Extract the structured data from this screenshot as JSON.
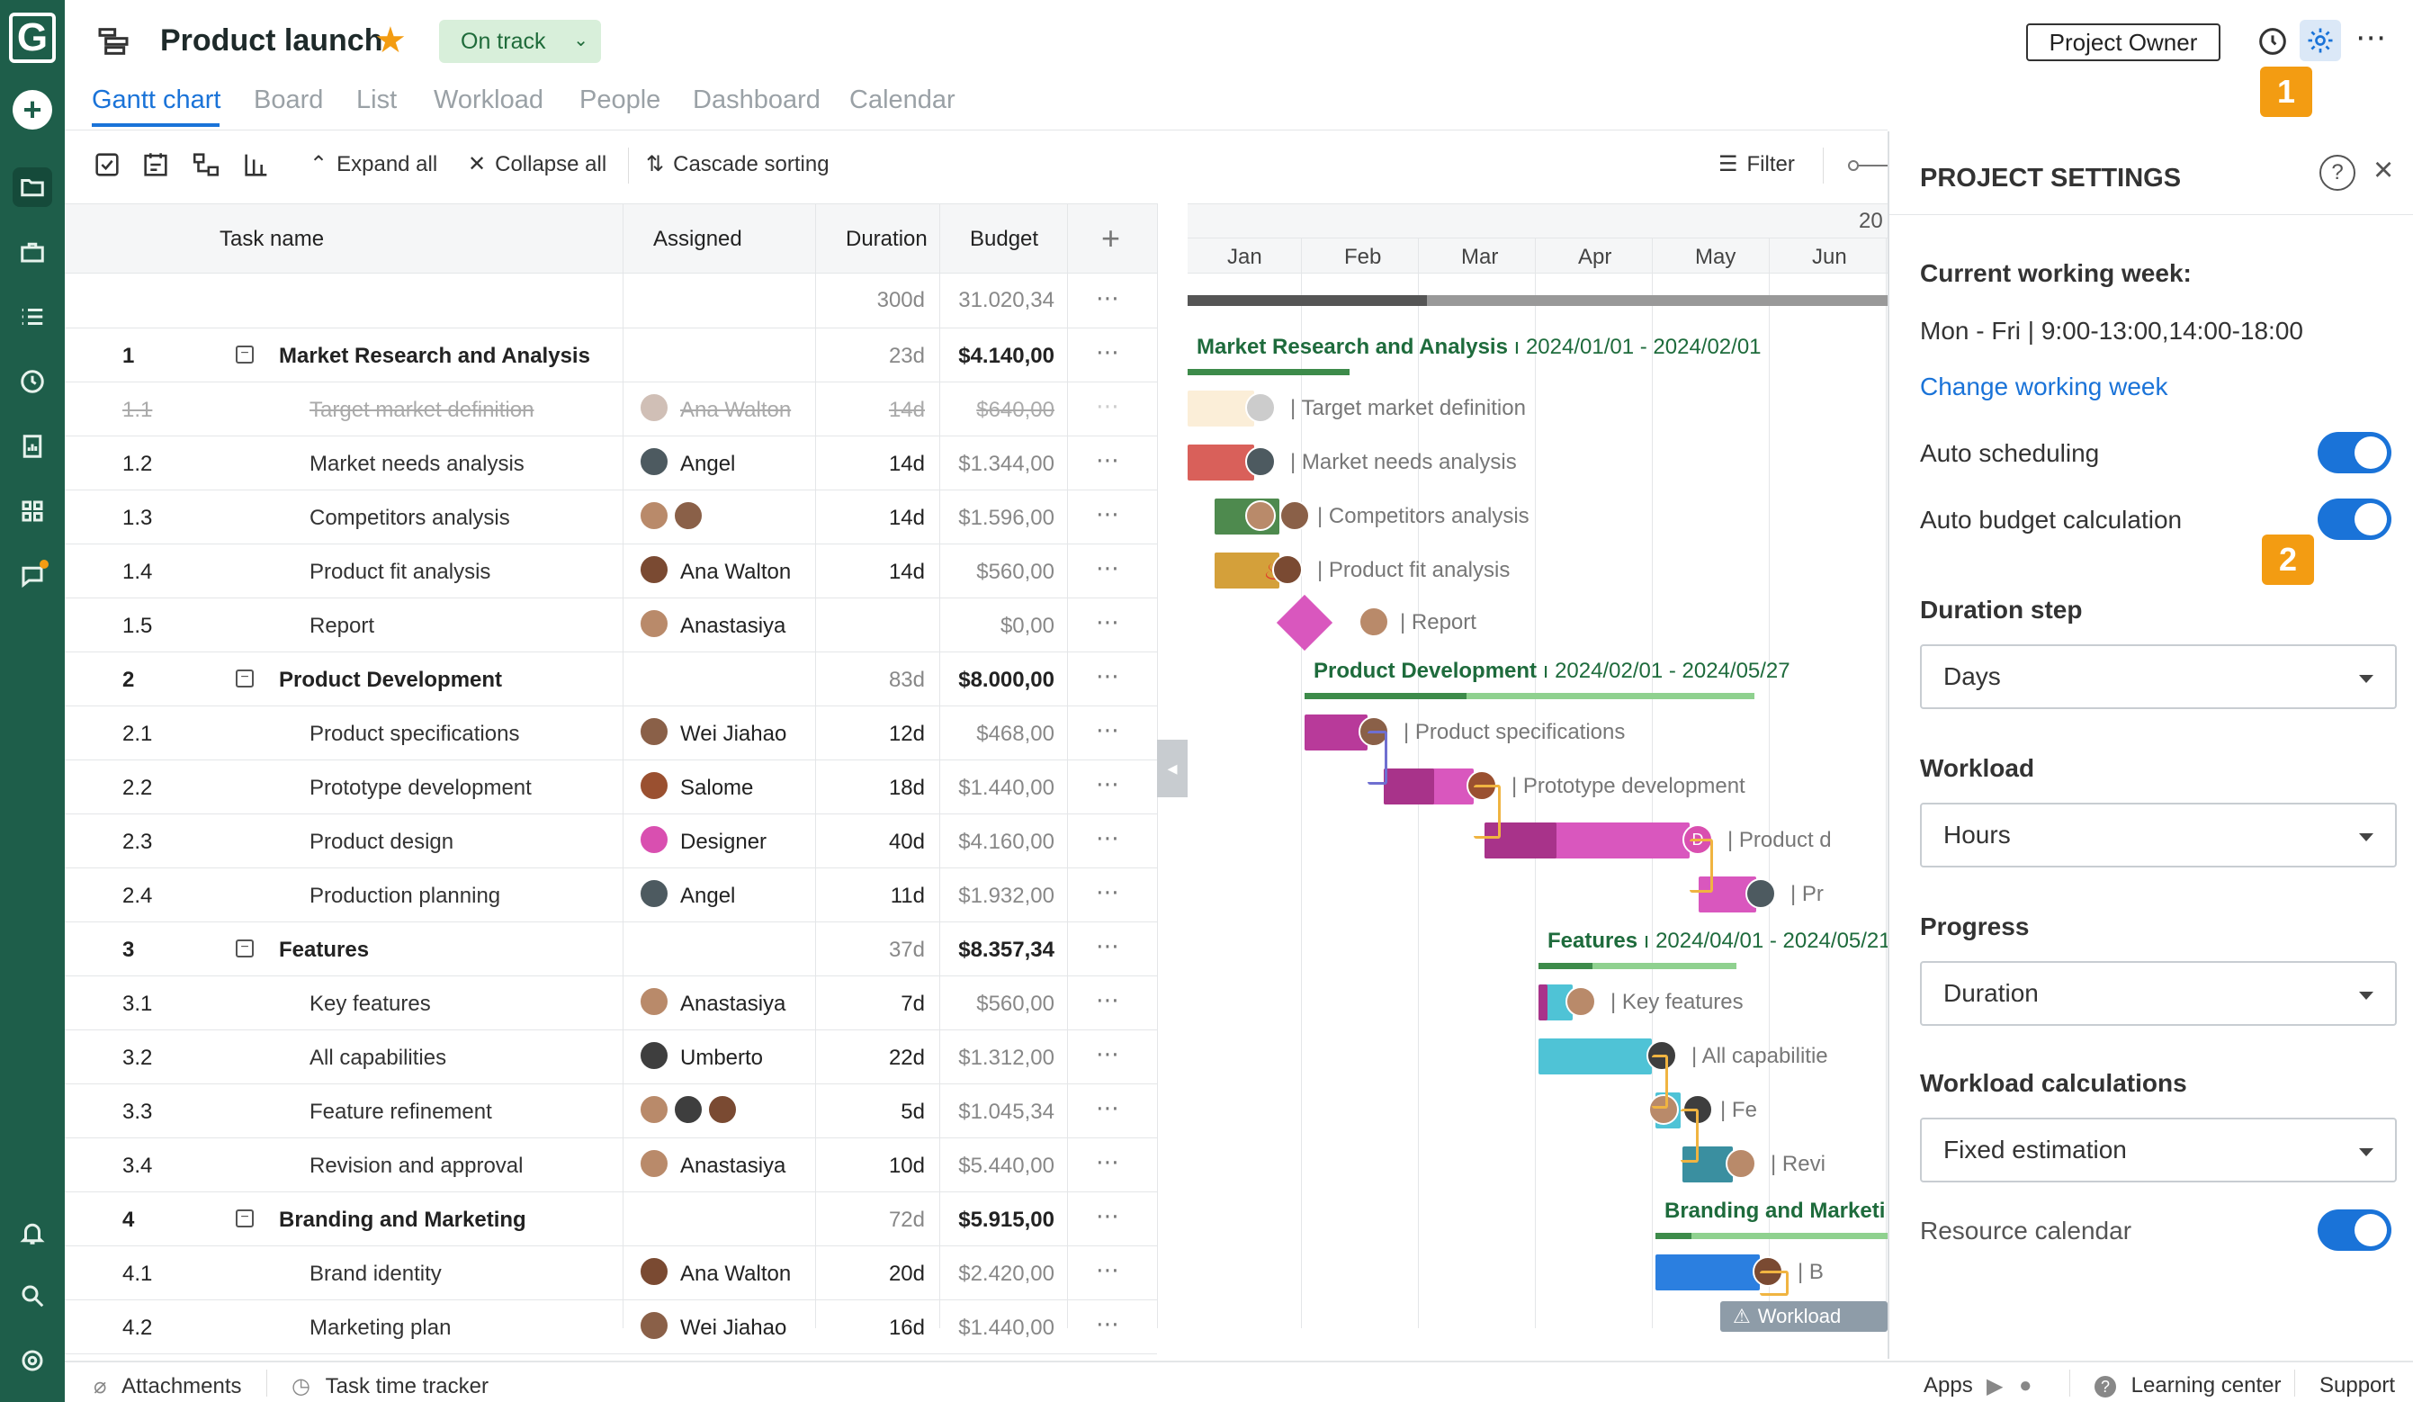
{
  "app": {
    "logo": "G"
  },
  "header": {
    "title": "Product launch",
    "status": "On track",
    "project_owner_button": "Project Owner"
  },
  "tabs": [
    {
      "label": "Gantt chart",
      "active": true
    },
    {
      "label": "Board"
    },
    {
      "label": "List"
    },
    {
      "label": "Workload"
    },
    {
      "label": "People"
    },
    {
      "label": "Dashboard"
    },
    {
      "label": "Calendar"
    }
  ],
  "toolbar": {
    "expand_all": "Expand all",
    "collapse_all": "Collapse all",
    "cascade_sorting": "Cascade sorting",
    "filter": "Filter"
  },
  "grid": {
    "columns": {
      "task": "Task name",
      "assigned": "Assigned",
      "duration": "Duration",
      "budget": "Budget",
      "add": "+"
    },
    "totals": {
      "duration": "300d",
      "budget": "31.020,34"
    },
    "more": "⋯",
    "rows": [
      {
        "num": "1",
        "name": "Market Research and Analysis",
        "assigned": "",
        "duration": "23d",
        "budget": "$4.140,00",
        "group": true
      },
      {
        "num": "1.1",
        "name": "Target market definition",
        "assigned": "Ana Walton",
        "duration": "14d",
        "budget": "$640,00",
        "done": true
      },
      {
        "num": "1.2",
        "name": "Market needs analysis",
        "assigned": "Angel",
        "duration": "14d",
        "budget": "$1.344,00"
      },
      {
        "num": "1.3",
        "name": "Competitors analysis",
        "assigned": "",
        "duration": "14d",
        "budget": "$1.596,00"
      },
      {
        "num": "1.4",
        "name": "Product fit analysis",
        "assigned": "Ana Walton",
        "duration": "14d",
        "budget": "$560,00"
      },
      {
        "num": "1.5",
        "name": "Report",
        "assigned": "Anastasiya",
        "duration": "",
        "budget": "$0,00"
      },
      {
        "num": "2",
        "name": "Product Development",
        "assigned": "",
        "duration": "83d",
        "budget": "$8.000,00",
        "group": true
      },
      {
        "num": "2.1",
        "name": "Product specifications",
        "assigned": "Wei Jiahao",
        "duration": "12d",
        "budget": "$468,00"
      },
      {
        "num": "2.2",
        "name": "Prototype development",
        "assigned": "Salome",
        "duration": "18d",
        "budget": "$1.440,00"
      },
      {
        "num": "2.3",
        "name": "Product design",
        "assigned": "Designer",
        "duration": "40d",
        "budget": "$4.160,00"
      },
      {
        "num": "2.4",
        "name": "Production planning",
        "assigned": "Angel",
        "duration": "11d",
        "budget": "$1.932,00"
      },
      {
        "num": "3",
        "name": "Features",
        "assigned": "",
        "duration": "37d",
        "budget": "$8.357,34",
        "group": true
      },
      {
        "num": "3.1",
        "name": "Key features",
        "assigned": "Anastasiya",
        "duration": "7d",
        "budget": "$560,00"
      },
      {
        "num": "3.2",
        "name": "All capabilities",
        "assigned": "Umberto",
        "duration": "22d",
        "budget": "$1.312,00"
      },
      {
        "num": "3.3",
        "name": "Feature refinement",
        "assigned": "",
        "duration": "5d",
        "budget": "$1.045,34"
      },
      {
        "num": "3.4",
        "name": "Revision and approval",
        "assigned": "Anastasiya",
        "duration": "10d",
        "budget": "$5.440,00"
      },
      {
        "num": "4",
        "name": "Branding and Marketing",
        "assigned": "",
        "duration": "72d",
        "budget": "$5.915,00",
        "group": true
      },
      {
        "num": "4.1",
        "name": "Brand identity",
        "assigned": "Ana Walton",
        "duration": "20d",
        "budget": "$2.420,00"
      },
      {
        "num": "4.2",
        "name": "Marketing plan",
        "assigned": "Wei Jiahao",
        "duration": "16d",
        "budget": "$1.440,00"
      }
    ]
  },
  "timeline": {
    "year": "20",
    "months": [
      "Jan",
      "Feb",
      "Mar",
      "Apr",
      "May",
      "Jun"
    ],
    "summaries": [
      {
        "name": "Market Research and Analysis",
        "range": "2024/01/01 - 2024/02/01"
      },
      {
        "name": "Product Development",
        "range": "2024/02/01 - 2024/05/27"
      },
      {
        "name": "Features",
        "range": "2024/04/01 - 2024/05/21"
      },
      {
        "name": "Branding and Marketi",
        "range": ""
      }
    ],
    "labels": [
      "Target market definition",
      "Market needs analysis",
      "Competitors analysis",
      "Product fit analysis",
      "Report",
      "Product specifications",
      "Prototype development",
      "Product d",
      "Pr",
      "Key features",
      "All capabilitie",
      "Fe",
      "Revi",
      "B"
    ],
    "workload_chip": "Workload",
    "designer_initial": "D"
  },
  "settings": {
    "title": "PROJECT SETTINGS",
    "working_week_label": "Current working week:",
    "working_week_value": "Mon - Fri | 9:00-13:00,14:00-18:00",
    "change_link": "Change working week",
    "auto_scheduling": "Auto scheduling",
    "auto_budget": "Auto budget calculation",
    "duration_step_label": "Duration step",
    "duration_step_value": "Days",
    "workload_label": "Workload",
    "workload_value": "Hours",
    "progress_label": "Progress",
    "progress_value": "Duration",
    "workload_calc_label": "Workload calculations",
    "workload_calc_value": "Fixed estimation",
    "resource_calendar": "Resource calendar"
  },
  "badges": [
    "1",
    "2"
  ],
  "footer": {
    "attachments": "Attachments",
    "time_tracker": "Task time tracker",
    "apps": "Apps",
    "learning_center": "Learning center",
    "support": "Support"
  },
  "colors": {
    "accent": "#1a73d8",
    "rail": "#1e5e4a",
    "badge": "#f39c12"
  }
}
